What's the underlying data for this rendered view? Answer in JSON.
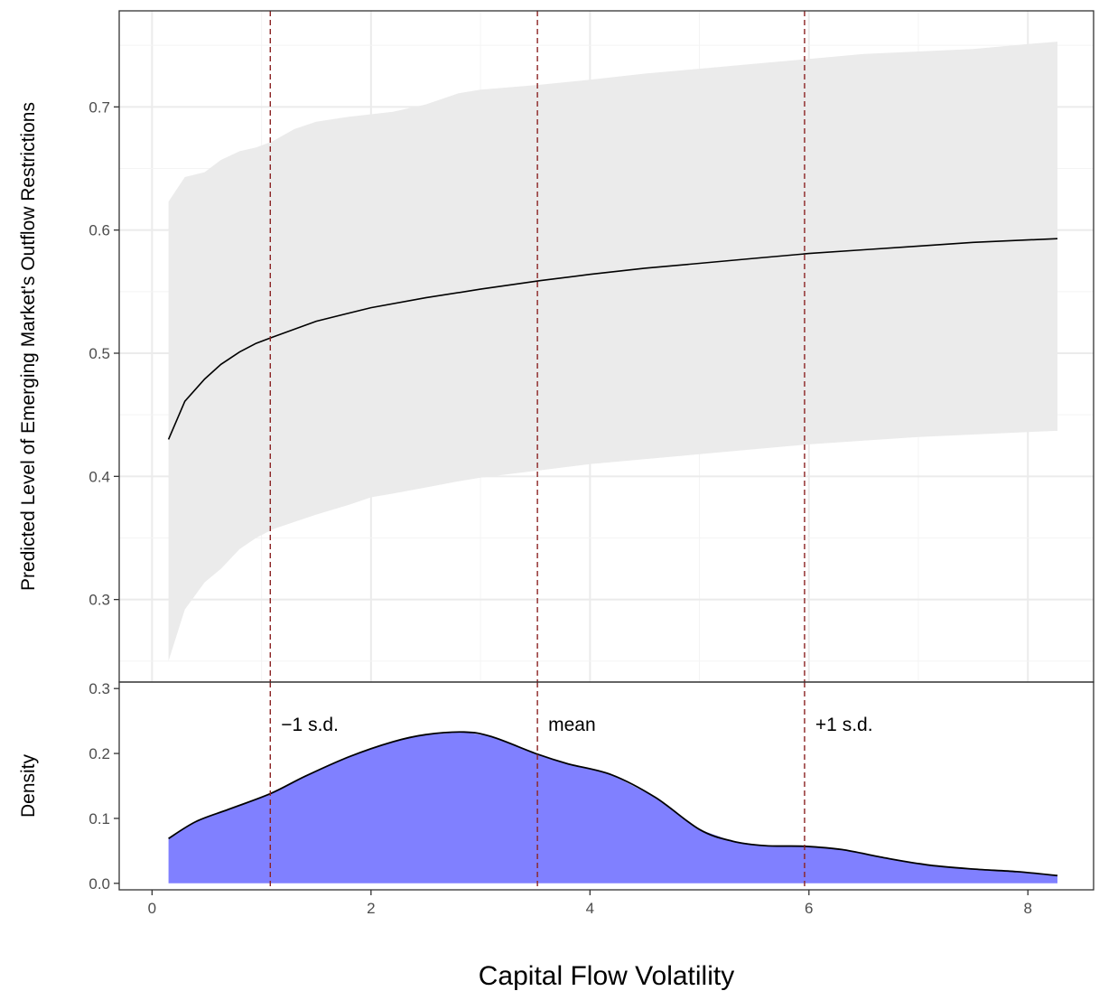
{
  "chart_data": [
    {
      "type": "line",
      "panel": "top",
      "ylabel": "Predicted Level of Emerging Market's Outflow Restrictions",
      "xlim": [
        -0.3,
        8.6
      ],
      "ylim": [
        0.233,
        0.778
      ],
      "x_ticks": [
        0,
        2,
        4,
        6,
        8
      ],
      "y_ticks": [
        0.3,
        0.4,
        0.5,
        0.6,
        0.7
      ],
      "y_tick_labels": [
        "0.3",
        "0.4",
        "0.5",
        "0.6",
        "0.7"
      ],
      "grid": true,
      "series": [
        {
          "kind": "line",
          "x": [
            0.15,
            0.3,
            0.48,
            0.63,
            0.8,
            0.95,
            1.1,
            1.5,
            2.0,
            2.5,
            3.0,
            3.55,
            4.0,
            4.5,
            5.0,
            5.5,
            6.0,
            6.5,
            7.0,
            7.5,
            8.0,
            8.27
          ],
          "y": [
            0.43,
            0.461,
            0.479,
            0.491,
            0.501,
            0.508,
            0.513,
            0.526,
            0.537,
            0.545,
            0.552,
            0.559,
            0.564,
            0.569,
            0.573,
            0.577,
            0.581,
            0.584,
            0.587,
            0.59,
            0.592,
            0.593
          ]
        },
        {
          "kind": "ribbon",
          "x": [
            0.15,
            0.3,
            0.48,
            0.63,
            0.8,
            0.95,
            1.1,
            1.3,
            1.5,
            1.8,
            2.0,
            2.2,
            2.5,
            2.8,
            3.0,
            3.55,
            4.0,
            4.5,
            5.0,
            5.5,
            6.0,
            6.5,
            7.0,
            7.5,
            8.0,
            8.27
          ],
          "upper": [
            0.623,
            0.643,
            0.647,
            0.657,
            0.664,
            0.667,
            0.672,
            0.682,
            0.688,
            0.692,
            0.694,
            0.696,
            0.702,
            0.711,
            0.714,
            0.718,
            0.722,
            0.727,
            0.731,
            0.735,
            0.739,
            0.743,
            0.745,
            0.747,
            0.751,
            0.753
          ],
          "lower": [
            0.25,
            0.292,
            0.314,
            0.325,
            0.341,
            0.35,
            0.357,
            0.363,
            0.369,
            0.377,
            0.383,
            0.386,
            0.391,
            0.396,
            0.399,
            0.405,
            0.41,
            0.414,
            0.418,
            0.422,
            0.426,
            0.429,
            0.432,
            0.434,
            0.436,
            0.437
          ]
        }
      ],
      "reference_lines": [
        {
          "x": 1.08,
          "color": "#8b2323"
        },
        {
          "x": 3.52,
          "color": "#8b2323"
        },
        {
          "x": 5.96,
          "color": "#8b2323"
        }
      ]
    },
    {
      "type": "area",
      "panel": "bottom",
      "xlabel": "Capital Flow Volatility",
      "ylabel": "Density",
      "xlim": [
        -0.3,
        8.6
      ],
      "ylim": [
        -0.01,
        0.31
      ],
      "x_ticks": [
        0,
        2,
        4,
        6,
        8
      ],
      "x_tick_labels": [
        "0",
        "2",
        "4",
        "6",
        "8"
      ],
      "y_ticks": [
        0.0,
        0.1,
        0.2,
        0.3
      ],
      "y_tick_labels": [
        "0.0",
        "0.1",
        "0.2",
        "0.3"
      ],
      "grid": false,
      "fill_color": "#8080ff",
      "series": [
        {
          "kind": "density",
          "x": [
            0.15,
            0.4,
            0.7,
            1.08,
            1.4,
            1.8,
            2.2,
            2.5,
            2.85,
            3.1,
            3.52,
            3.8,
            4.2,
            4.6,
            5.0,
            5.3,
            5.6,
            5.96,
            6.3,
            6.7,
            7.1,
            7.5,
            7.9,
            8.27
          ],
          "y": [
            0.069,
            0.095,
            0.114,
            0.138,
            0.165,
            0.195,
            0.218,
            0.229,
            0.233,
            0.226,
            0.199,
            0.184,
            0.167,
            0.132,
            0.083,
            0.065,
            0.058,
            0.057,
            0.052,
            0.039,
            0.028,
            0.022,
            0.018,
            0.012
          ]
        }
      ],
      "reference_lines": [
        {
          "x": 1.08,
          "label": "−1 s.d.",
          "color": "#8b2323"
        },
        {
          "x": 3.52,
          "label": "mean",
          "color": "#8b2323"
        },
        {
          "x": 5.96,
          "label": "+1 s.d.",
          "color": "#8b2323"
        }
      ]
    }
  ]
}
